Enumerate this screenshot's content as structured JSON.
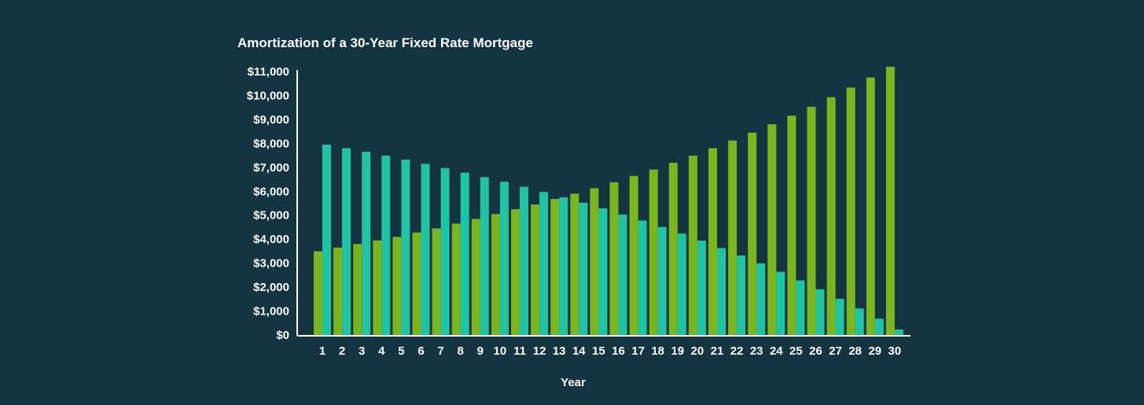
{
  "chart_data": {
    "type": "bar",
    "title": "Amortization of a 30-Year Fixed Rate Mortgage",
    "xlabel": "Year",
    "ylabel": "",
    "ylim": [
      0,
      11000
    ],
    "yticks": [
      0,
      1000,
      2000,
      3000,
      4000,
      5000,
      6000,
      7000,
      8000,
      9000,
      10000,
      11000
    ],
    "ytick_labels": [
      "$0",
      "$1,000",
      "$2,000",
      "$3,000",
      "$4,000",
      "$5,000",
      "$6,000",
      "$7,000",
      "$8,000",
      "$9,000",
      "$10,000",
      "$11,000"
    ],
    "categories": [
      "1",
      "2",
      "3",
      "4",
      "5",
      "6",
      "7",
      "8",
      "9",
      "10",
      "11",
      "12",
      "13",
      "14",
      "15",
      "16",
      "17",
      "18",
      "19",
      "20",
      "21",
      "22",
      "23",
      "24",
      "25",
      "26",
      "27",
      "28",
      "29",
      "30"
    ],
    "grid": false,
    "legend": "none",
    "series": [
      {
        "color": "#7ab51d",
        "values": [
          3500,
          3650,
          3800,
          3950,
          4100,
          4280,
          4450,
          4650,
          4850,
          5050,
          5250,
          5450,
          5680,
          5900,
          6130,
          6380,
          6640,
          6910,
          7190,
          7490,
          7800,
          8120,
          8450,
          8800,
          9160,
          9530,
          9930,
          10330,
          10750,
          11200
        ]
      },
      {
        "color": "#1ec4a4",
        "values": [
          7950,
          7800,
          7650,
          7490,
          7320,
          7150,
          6970,
          6780,
          6590,
          6400,
          6190,
          5970,
          5750,
          5520,
          5290,
          5030,
          4780,
          4510,
          4230,
          3940,
          3630,
          3320,
          2990,
          2640,
          2280,
          1910,
          1510,
          1110,
          680,
          230
        ]
      }
    ]
  }
}
